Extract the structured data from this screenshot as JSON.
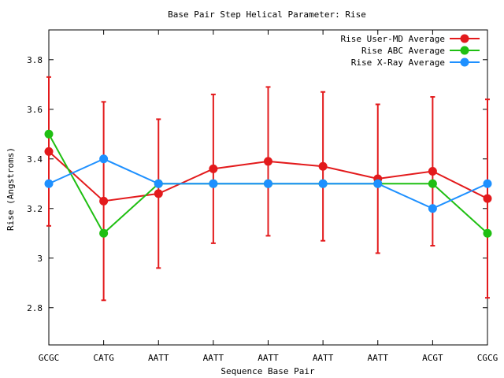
{
  "chart_data": {
    "type": "line",
    "title": "Base Pair Step Helical Parameter: Rise",
    "xlabel": "Sequence Base Pair",
    "ylabel": "Rise (Angstroms)",
    "categories": [
      "GCGC",
      "CATG",
      "AATT",
      "AATT",
      "AATT",
      "AATT",
      "AATT",
      "ACGT",
      "CGCG"
    ],
    "ylim": [
      2.65,
      3.92
    ],
    "yticks": [
      2.8,
      3,
      3.2,
      3.4,
      3.6,
      3.8
    ],
    "ytick_labels": [
      "2.8",
      "3",
      "3.2",
      "3.4",
      "3.6",
      "3.8"
    ],
    "grid": false,
    "legend_position": "top-right",
    "series": [
      {
        "name": "Rise User-MD Average",
        "color": "#e31a1c",
        "values": [
          3.43,
          3.23,
          3.26,
          3.36,
          3.39,
          3.37,
          3.32,
          3.35,
          3.24
        ],
        "error_low": [
          3.13,
          2.83,
          2.96,
          3.06,
          3.09,
          3.07,
          3.02,
          3.05,
          2.84
        ],
        "error_high": [
          3.73,
          3.63,
          3.56,
          3.66,
          3.69,
          3.67,
          3.62,
          3.65,
          3.64
        ]
      },
      {
        "name": "Rise ABC Average",
        "color": "#1fbf12",
        "values": [
          3.5,
          3.1,
          3.3,
          3.3,
          3.3,
          3.3,
          3.3,
          3.3,
          3.1
        ]
      },
      {
        "name": "Rise X-Ray Average",
        "color": "#1e90ff",
        "values": [
          3.3,
          3.4,
          3.3,
          3.3,
          3.3,
          3.3,
          3.3,
          3.2,
          3.3
        ]
      }
    ]
  }
}
